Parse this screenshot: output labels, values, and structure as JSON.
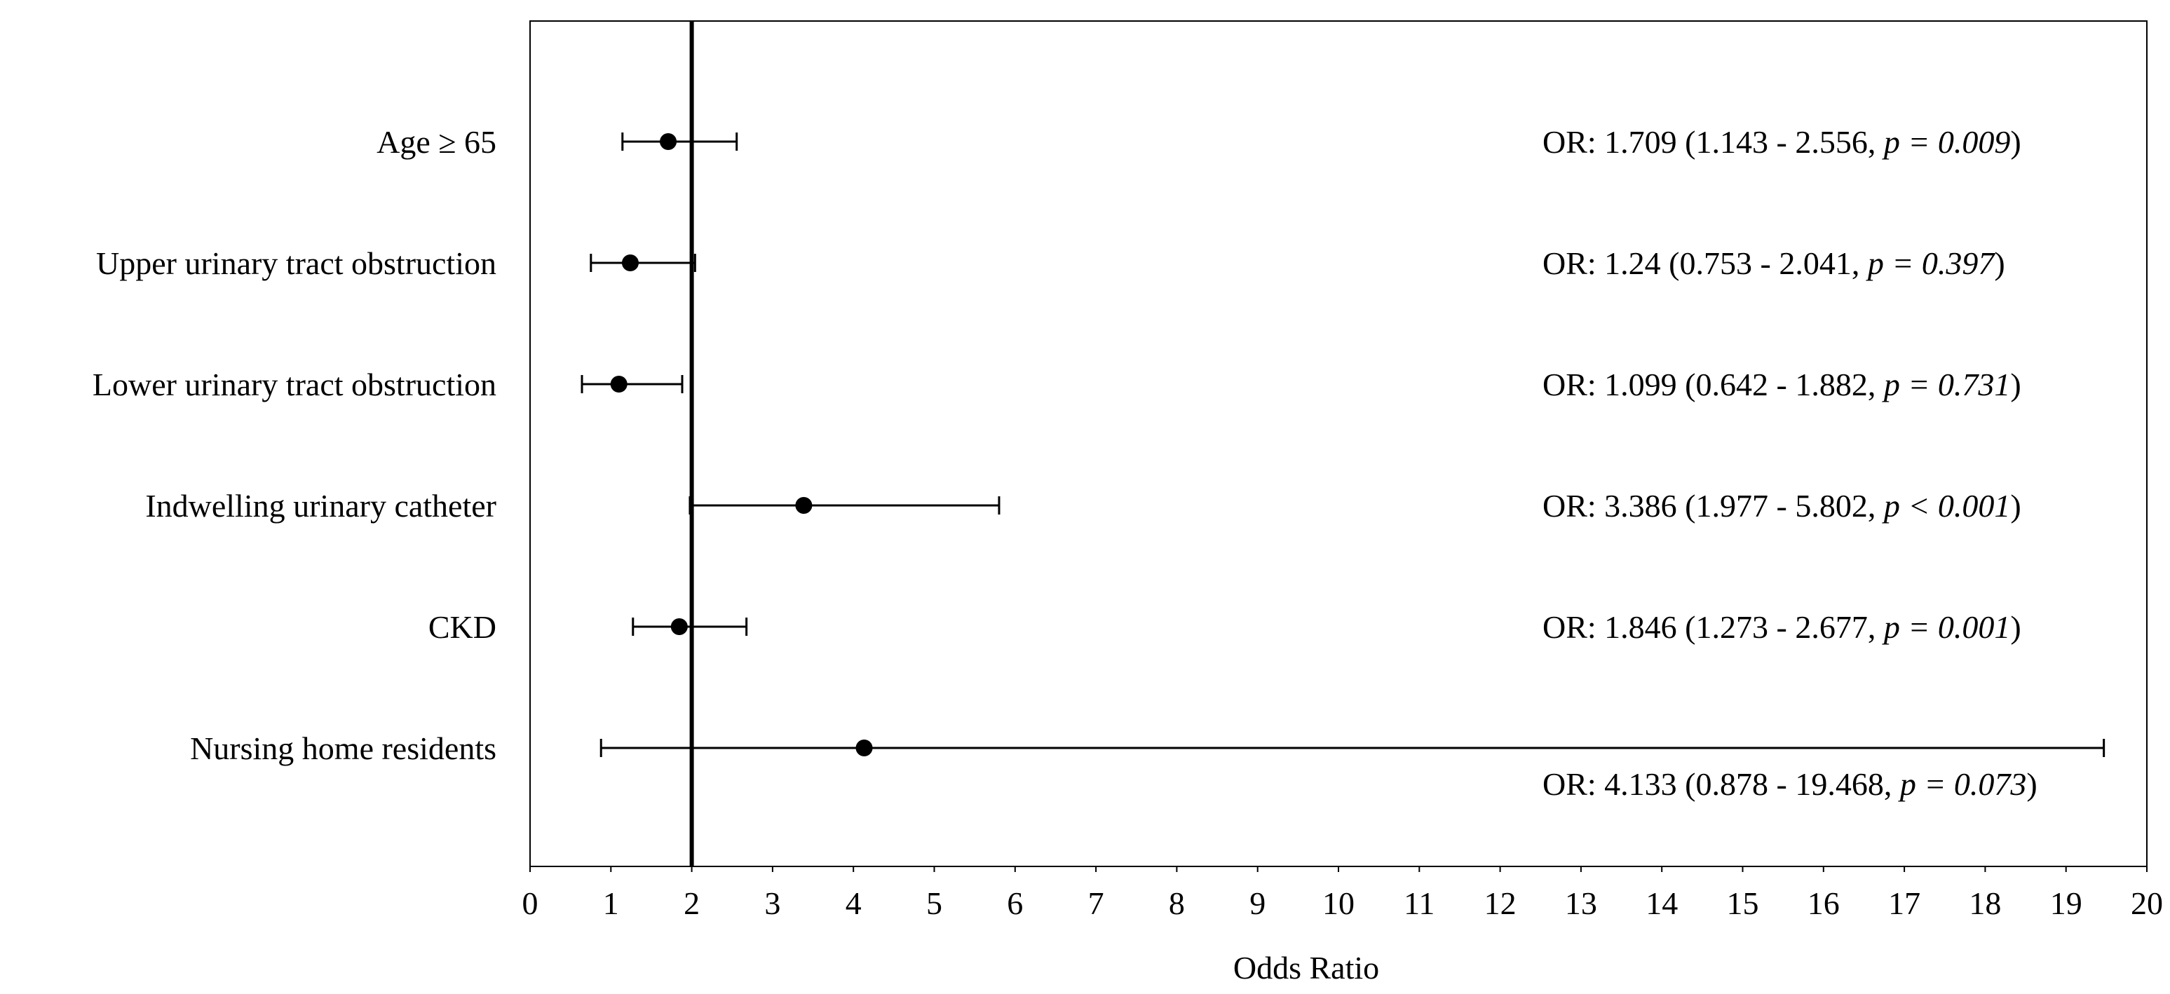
{
  "chart_data": {
    "type": "forest",
    "title": "",
    "xlabel": "Odds Ratio",
    "ylabel": "",
    "xlim": [
      0,
      20
    ],
    "xticks": [
      "0",
      "1",
      "2",
      "3",
      "4",
      "5",
      "6",
      "7",
      "8",
      "9",
      "10",
      "11",
      "12",
      "13",
      "14",
      "15",
      "16",
      "17",
      "18",
      "19",
      "20"
    ],
    "reference_line": 2,
    "grid": false,
    "rows": [
      {
        "label": "Age ≥ 65",
        "or": 1.709,
        "lo": 1.143,
        "hi": 2.556,
        "ann_prefix": "OR: 1.709 (1.143 - 2.556, ",
        "ann_p": "p = 0.009",
        "ann_suffix": ")"
      },
      {
        "label": "Upper urinary tract obstruction",
        "or": 1.24,
        "lo": 0.753,
        "hi": 2.041,
        "ann_prefix": "OR: 1.24 (0.753 - 2.041, ",
        "ann_p": "p = 0.397",
        "ann_suffix": ")"
      },
      {
        "label": "Lower urinary tract obstruction",
        "or": 1.099,
        "lo": 0.642,
        "hi": 1.882,
        "ann_prefix": "OR: 1.099 (0.642 - 1.882, ",
        "ann_p": "p = 0.731",
        "ann_suffix": ")"
      },
      {
        "label": "Indwelling urinary catheter",
        "or": 3.386,
        "lo": 1.977,
        "hi": 5.802,
        "ann_prefix": "OR: 3.386 (1.977 - 5.802, ",
        "ann_p": "p < 0.001",
        "ann_suffix": ")"
      },
      {
        "label": "CKD",
        "or": 1.846,
        "lo": 1.273,
        "hi": 2.677,
        "ann_prefix": "OR: 1.846 (1.273 - 2.677, ",
        "ann_p": "p = 0.001",
        "ann_suffix": ")"
      },
      {
        "label": "Nursing home residents",
        "or": 4.133,
        "lo": 0.878,
        "hi": 19.468,
        "ann_prefix": "OR: 4.133 (0.878 - 19.468, ",
        "ann_p": "p = 0.073",
        "ann_suffix": ")"
      }
    ]
  }
}
